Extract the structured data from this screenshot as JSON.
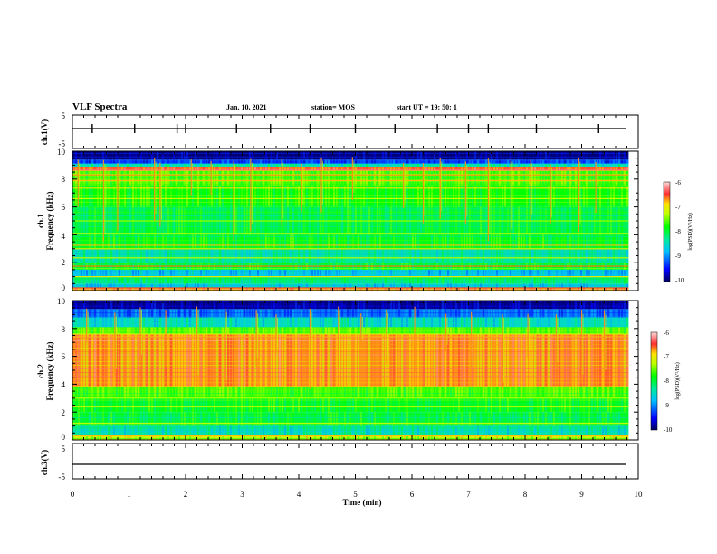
{
  "header": {
    "title": "VLF Spectra",
    "date": "Jan. 10, 2021",
    "station": "station= MOS",
    "start": "start  UT =   19: 50: 1"
  },
  "chart_data": [
    {
      "type": "line",
      "panel": "ch1-waveform",
      "ylabel": "ch.1(V)",
      "ylim": [
        -5,
        5
      ],
      "yticks": [
        "5",
        "-5"
      ],
      "series": [
        {
          "values": [
            -1,
            -1
          ]
        }
      ],
      "x": [
        0,
        10
      ],
      "spikes_at_min": [
        0.35,
        1.1,
        1.85,
        2.0,
        2.9,
        3.5,
        4.2,
        5.0,
        5.7,
        6.45,
        7.0,
        7.35,
        8.2,
        9.3
      ]
    },
    {
      "type": "heatmap",
      "panel": "ch1-spectrogram",
      "ylabel_lines": [
        "ch.1",
        "Frequency  (kHz)"
      ],
      "ylim": [
        0,
        10
      ],
      "yticks": [
        "0",
        "2",
        "4",
        "6",
        "8",
        "10"
      ],
      "xlim": [
        0,
        9.83
      ],
      "colorbar": {
        "label": "log(PSD)(V²/Hz)",
        "ticks": [
          "-6",
          "-7",
          "-8",
          "-9",
          "-10"
        ],
        "range": [
          -10,
          -6
        ]
      },
      "bands": [
        {
          "f0": 0.0,
          "f1": 0.2,
          "v": -6.8
        },
        {
          "f0": 0.2,
          "f1": 0.5,
          "v": -8.6
        },
        {
          "f0": 0.5,
          "f1": 1.0,
          "v": -8.2
        },
        {
          "f0": 1.0,
          "f1": 1.5,
          "v": -8.7
        },
        {
          "f0": 1.5,
          "f1": 2.0,
          "v": -7.9
        },
        {
          "f0": 2.0,
          "f1": 3.0,
          "v": -8.3
        },
        {
          "f0": 3.0,
          "f1": 4.0,
          "v": -7.9
        },
        {
          "f0": 4.0,
          "f1": 6.0,
          "v": -8.0
        },
        {
          "f0": 6.0,
          "f1": 7.5,
          "v": -7.8
        },
        {
          "f0": 7.5,
          "f1": 8.6,
          "v": -7.6
        },
        {
          "f0": 8.6,
          "f1": 8.9,
          "v": -6.6
        },
        {
          "f0": 8.9,
          "f1": 9.1,
          "v": -8.4
        },
        {
          "f0": 9.1,
          "f1": 9.4,
          "v": -9.3
        },
        {
          "f0": 9.4,
          "f1": 10.0,
          "v": -9.9
        }
      ],
      "lines": [
        {
          "f": 0.2,
          "v": -6.5
        },
        {
          "f": 1.0,
          "v": -7.0
        },
        {
          "f": 1.75,
          "v": -6.6
        },
        {
          "f": 2.35,
          "v": -7.2
        },
        {
          "f": 3.0,
          "v": -7.0
        },
        {
          "f": 3.25,
          "v": -6.8
        },
        {
          "f": 4.1,
          "v": -7.3
        },
        {
          "f": 5.0,
          "v": -7.4
        },
        {
          "f": 6.6,
          "v": -7.2
        },
        {
          "f": 7.35,
          "v": -6.9
        },
        {
          "f": 7.9,
          "v": -6.8
        },
        {
          "f": 8.3,
          "v": -6.7
        },
        {
          "f": 8.65,
          "v": -6.3
        },
        {
          "f": 8.85,
          "v": -6.5
        }
      ],
      "bursts_at_min": [
        0.1,
        0.55,
        0.8,
        1.45,
        1.55,
        2.1,
        2.45,
        2.85,
        3.15,
        3.7,
        4.05,
        4.4,
        4.95,
        5.4,
        5.85,
        6.2,
        6.5,
        6.95,
        7.35,
        7.75,
        8.1,
        8.45,
        8.95,
        9.25
      ]
    },
    {
      "type": "heatmap",
      "panel": "ch2-spectrogram",
      "ylabel_lines": [
        "ch.2",
        "Frequency  (kHz)"
      ],
      "ylim": [
        0,
        10
      ],
      "yticks": [
        "0",
        "2",
        "4",
        "6",
        "8",
        "10"
      ],
      "xlim": [
        0,
        9.83
      ],
      "colorbar": {
        "label": "log(PSD)(V²/Hz)",
        "ticks": [
          "-6",
          "-7",
          "-8",
          "-9",
          "-10"
        ],
        "range": [
          -10,
          -6
        ]
      },
      "bands": [
        {
          "f0": 0.0,
          "f1": 0.3,
          "v": -7.2
        },
        {
          "f0": 0.3,
          "f1": 1.0,
          "v": -8.4
        },
        {
          "f0": 1.0,
          "f1": 2.0,
          "v": -8.0
        },
        {
          "f0": 2.0,
          "f1": 3.0,
          "v": -7.9
        },
        {
          "f0": 3.0,
          "f1": 3.8,
          "v": -7.6
        },
        {
          "f0": 3.8,
          "f1": 7.6,
          "v": -6.7
        },
        {
          "f0": 7.6,
          "f1": 8.1,
          "v": -7.6
        },
        {
          "f0": 8.1,
          "f1": 8.8,
          "v": -8.5
        },
        {
          "f0": 8.8,
          "f1": 9.4,
          "v": -9.1
        },
        {
          "f0": 9.4,
          "f1": 10.0,
          "v": -9.8
        }
      ],
      "lines": [
        {
          "f": 0.3,
          "v": -6.8
        },
        {
          "f": 1.2,
          "v": -7.3
        },
        {
          "f": 2.4,
          "v": -7.2
        },
        {
          "f": 3.0,
          "v": -7.3
        },
        {
          "f": 4.5,
          "v": -6.6
        },
        {
          "f": 7.4,
          "v": -6.8
        },
        {
          "f": 7.6,
          "v": -7.2
        }
      ],
      "bursts_at_min": [
        0.25,
        0.75,
        1.2,
        1.65,
        2.2,
        2.7,
        3.25,
        3.6,
        4.2,
        4.7,
        5.1,
        5.55,
        6.05,
        6.6,
        7.05,
        7.6,
        8.05,
        8.55,
        9.0,
        9.4
      ]
    },
    {
      "type": "line",
      "panel": "ch3-waveform",
      "ylabel": "ch.3(V)",
      "ylim": [
        -5,
        5
      ],
      "yticks": [
        "5",
        "-5"
      ],
      "xlabel": "Time  (min)",
      "xlim": [
        0,
        10
      ],
      "xticks": [
        "0",
        "1",
        "2",
        "3",
        "4",
        "5",
        "6",
        "7",
        "8",
        "9",
        "10"
      ],
      "series": [
        {
          "values": [
            -1,
            -1
          ]
        }
      ],
      "x": [
        0,
        10
      ]
    }
  ]
}
